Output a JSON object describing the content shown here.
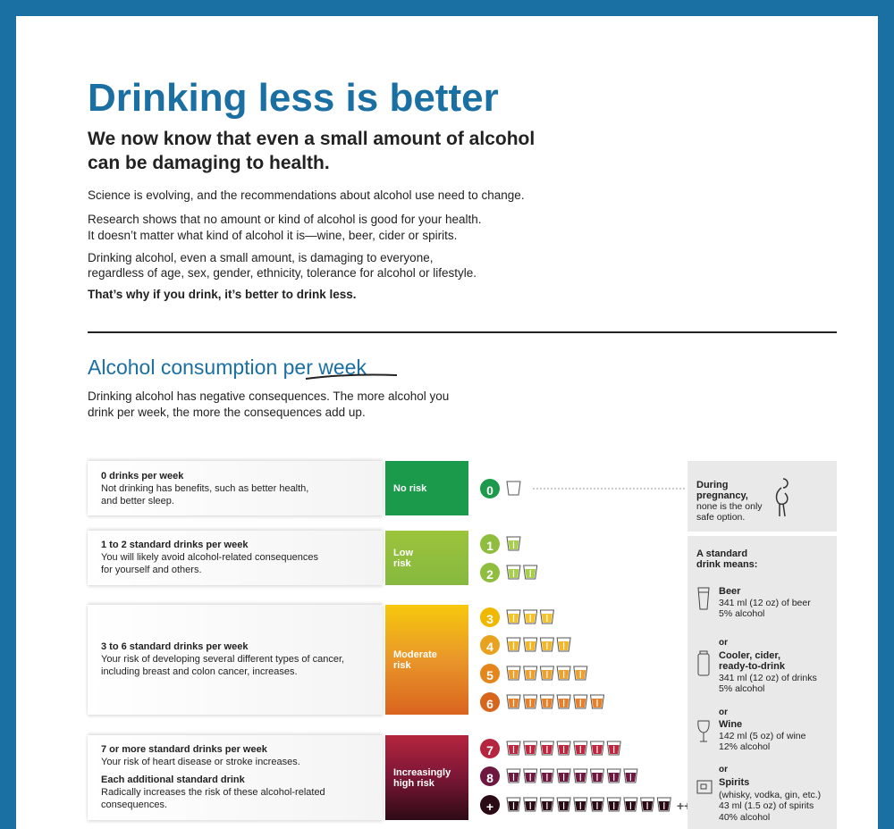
{
  "header": {
    "title": "Drinking less is better",
    "subtitle": [
      "We now know that even a small amount of alcohol",
      "can be damaging to health."
    ],
    "paragraphs": [
      [
        "Science is evolving, and the recommendations about alcohol use need to change."
      ],
      [
        "Research shows that no amount or kind of alcohol is good for your health.",
        "It doesn’t matter what kind of alcohol it is—wine, beer, cider or spirits."
      ],
      [
        "Drinking alcohol, even a small amount, is damaging to everyone,",
        "regardless of age, sex, gender, ethnicity, tolerance for alcohol or lifestyle."
      ],
      [
        "That’s why if you drink, it’s better to drink less."
      ]
    ]
  },
  "section": {
    "title": "Alcohol consumption per week",
    "text": [
      "Drinking alcohol has negative consequences. The more alcohol you",
      "drink per week, the more the consequences add up."
    ]
  },
  "rows": [
    {
      "blocks": [
        {
          "heading": "0 drinks per week",
          "lines": [
            "Not drinking has benefits, such as better health,",
            "and better sleep."
          ]
        }
      ],
      "risk": [
        "No risk"
      ],
      "levels": [
        "0"
      ]
    },
    {
      "blocks": [
        {
          "heading": "1 to 2 standard drinks per week",
          "lines": [
            "You will likely avoid alcohol-related consequences",
            "for yourself and others."
          ]
        }
      ],
      "risk": [
        "Low",
        "risk"
      ],
      "levels": [
        "1",
        "2"
      ]
    },
    {
      "blocks": [
        {
          "heading": "3 to 6 standard drinks per week",
          "lines": [
            "Your risk of developing several different types of cancer,",
            "including breast and colon cancer, increases."
          ]
        }
      ],
      "risk": [
        "Moderate",
        "risk"
      ],
      "levels": [
        "3",
        "4",
        "5",
        "6"
      ]
    },
    {
      "blocks": [
        {
          "heading": "7 or more standard drinks per week",
          "lines": [
            "Your risk of heart disease or stroke increases."
          ]
        },
        {
          "heading": "Each additional standard drink",
          "lines": [
            "Radically increases the risk of these alcohol-related",
            "consequences."
          ]
        }
      ],
      "risk": [
        "Increasingly",
        "high risk"
      ],
      "levels": [
        "7",
        "8",
        "+"
      ],
      "extra": "++"
    }
  ],
  "pregnancy": {
    "heading": [
      "During",
      "pregnancy,"
    ],
    "lines": [
      "none is the only",
      "safe option."
    ]
  },
  "standard_drink": {
    "title": [
      "A standard",
      "drink means:"
    ],
    "separator": "or",
    "items": [
      {
        "name": [
          "Beer"
        ],
        "details": [
          "341 ml (12 oz) of beer",
          "5% alcohol"
        ]
      },
      {
        "name": [
          "Cooler, cider,",
          "ready-to-drink"
        ],
        "details": [
          "341 ml (12 oz) of drinks",
          "5% alcohol"
        ]
      },
      {
        "name": [
          "Wine"
        ],
        "details": [
          "142 ml (5 oz) of wine",
          "12% alcohol"
        ]
      },
      {
        "name": [
          "Spirits"
        ],
        "details": [
          "(whisky, vodka, gin, etc.)",
          "43 ml (1.5 oz) of spirits",
          "40% alcohol"
        ]
      }
    ]
  }
}
